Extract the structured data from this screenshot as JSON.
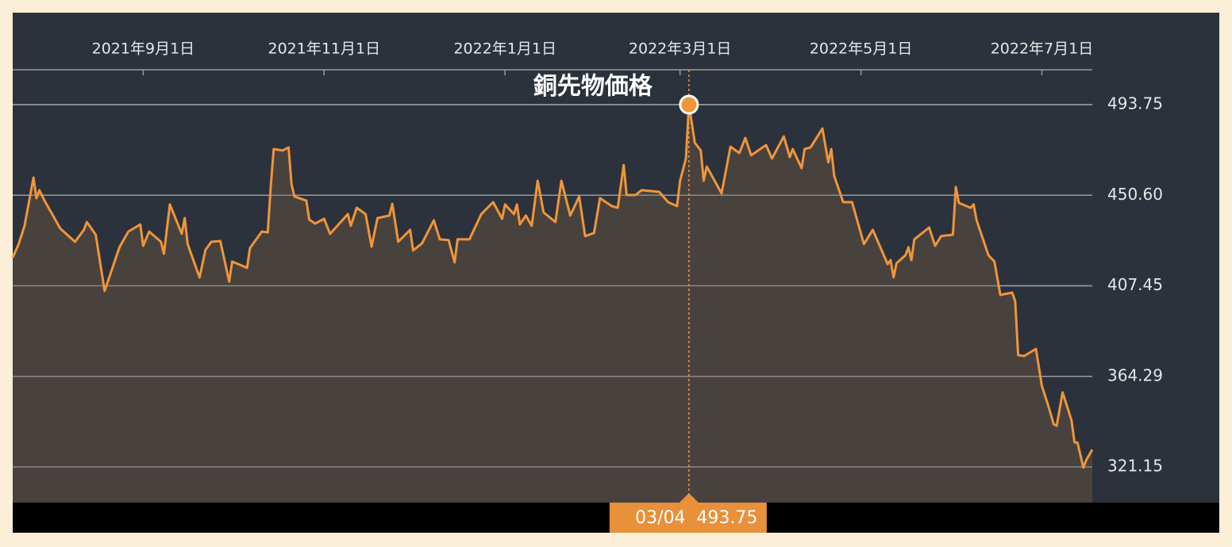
{
  "chart_data": {
    "type": "line",
    "x": [
      "2021-07-19",
      "2021-07-21",
      "2021-07-23",
      "2021-07-26",
      "2021-07-27",
      "2021-07-28",
      "2021-07-30",
      "2021-08-01",
      "2021-08-04",
      "2021-08-09",
      "2021-08-12",
      "2021-08-13",
      "2021-08-16",
      "2021-08-19",
      "2021-08-24",
      "2021-08-27",
      "2021-08-31",
      "2021-09-01",
      "2021-09-03",
      "2021-09-07",
      "2021-09-08",
      "2021-09-10",
      "2021-09-14",
      "2021-09-15",
      "2021-09-16",
      "2021-09-20",
      "2021-09-22",
      "2021-09-24",
      "2021-09-27",
      "2021-09-30",
      "2021-10-01",
      "2021-10-06",
      "2021-10-07",
      "2021-10-11",
      "2021-10-13",
      "2021-10-14",
      "2021-10-15",
      "2021-10-18",
      "2021-10-20",
      "2021-10-21",
      "2021-10-22",
      "2021-10-26",
      "2021-10-27",
      "2021-10-29",
      "2021-11-01",
      "2021-11-03",
      "2021-11-09",
      "2021-11-10",
      "2021-11-12",
      "2021-11-15",
      "2021-11-17",
      "2021-11-19",
      "2021-11-23",
      "2021-11-24",
      "2021-11-26",
      "2021-11-30",
      "2021-12-01",
      "2021-12-04",
      "2021-12-08",
      "2021-12-10",
      "2021-12-13",
      "2021-12-15",
      "2021-12-16",
      "2021-12-20",
      "2021-12-24",
      "2021-12-28",
      "2021-12-31",
      "2022-01-01",
      "2022-01-04",
      "2022-01-05",
      "2022-01-06",
      "2022-01-08",
      "2022-01-10",
      "2022-01-12",
      "2022-01-14",
      "2022-01-18",
      "2022-01-20",
      "2022-01-23",
      "2022-01-26",
      "2022-01-28",
      "2022-01-31",
      "2022-02-02",
      "2022-02-06",
      "2022-02-08",
      "2022-02-10",
      "2022-02-11",
      "2022-02-14",
      "2022-02-16",
      "2022-02-22",
      "2022-02-25",
      "2022-02-28",
      "2022-03-01",
      "2022-03-03",
      "2022-03-04",
      "2022-03-06",
      "2022-03-08",
      "2022-03-09",
      "2022-03-10",
      "2022-03-15",
      "2022-03-18",
      "2022-03-21",
      "2022-03-23",
      "2022-03-25",
      "2022-03-30",
      "2022-04-01",
      "2022-04-05",
      "2022-04-07",
      "2022-04-08",
      "2022-04-11",
      "2022-04-12",
      "2022-04-14",
      "2022-04-18",
      "2022-04-20",
      "2022-04-21",
      "2022-04-22",
      "2022-04-25",
      "2022-04-28",
      "2022-05-02",
      "2022-05-05",
      "2022-05-10",
      "2022-05-11",
      "2022-05-12",
      "2022-05-13",
      "2022-05-16",
      "2022-05-17",
      "2022-05-18",
      "2022-05-19",
      "2022-05-24",
      "2022-05-26",
      "2022-05-28",
      "2022-06-01",
      "2022-06-02",
      "2022-06-03",
      "2022-06-07",
      "2022-06-08",
      "2022-06-09",
      "2022-06-13",
      "2022-06-15",
      "2022-06-17",
      "2022-06-21",
      "2022-06-22",
      "2022-06-23",
      "2022-06-25",
      "2022-06-29",
      "2022-07-01",
      "2022-07-03",
      "2022-07-05",
      "2022-07-06",
      "2022-07-08",
      "2022-07-11",
      "2022-07-12",
      "2022-07-13",
      "2022-07-15",
      "2022-07-16",
      "2022-07-18"
    ],
    "series": [
      {
        "name": "銅先物価格",
        "color": "#f0953a",
        "values": [
          420.9,
          427.3,
          436.0,
          459.0,
          449.2,
          453.0,
          447.3,
          442.4,
          434.8,
          428.4,
          434.1,
          437.8,
          431.8,
          405.0,
          425.8,
          433.3,
          436.7,
          426.5,
          433.3,
          428.4,
          422.7,
          446.2,
          432.2,
          439.7,
          427.3,
          411.4,
          424.6,
          428.4,
          428.8,
          409.5,
          419.0,
          416.0,
          425.4,
          433.3,
          432.9,
          454.9,
          472.6,
          471.9,
          473.4,
          456.0,
          450.0,
          448.0,
          439.0,
          437.1,
          439.4,
          432.2,
          441.6,
          436.0,
          444.6,
          441.6,
          426.1,
          439.7,
          440.9,
          446.5,
          428.4,
          434.1,
          424.3,
          427.7,
          438.6,
          429.6,
          429.2,
          418.6,
          429.6,
          429.6,
          441.6,
          447.3,
          439.4,
          446.2,
          441.6,
          446.2,
          436.7,
          440.9,
          436.0,
          457.5,
          442.4,
          437.8,
          457.5,
          440.9,
          450.0,
          431.1,
          432.6,
          449.2,
          445.4,
          444.6,
          465.0,
          450.7,
          450.7,
          453.0,
          452.2,
          447.3,
          445.4,
          457.5,
          468.1,
          493.75,
          475.6,
          471.9,
          457.5,
          464.3,
          451.5,
          473.7,
          470.7,
          477.9,
          469.6,
          474.5,
          468.1,
          478.6,
          468.8,
          472.6,
          463.5,
          472.6,
          473.4,
          482.4,
          466.2,
          472.6,
          459.8,
          447.3,
          447.3,
          427.3,
          434.1,
          417.8,
          419.7,
          411.4,
          418.2,
          422.0,
          425.8,
          419.7,
          429.6,
          435.2,
          426.5,
          431.1,
          431.8,
          454.5,
          446.9,
          444.6,
          446.2,
          438.6,
          422.0,
          419.0,
          403.1,
          404.2,
          400.1,
          374.4,
          374.0,
          377.4,
          359.7,
          351.0,
          341.5,
          340.8,
          356.7,
          343.4,
          332.8,
          332.8,
          320.8,
          324.5,
          329.4
        ]
      }
    ],
    "xlim": [
      "2021-07-19",
      "2022-07-18"
    ],
    "xticks": [
      {
        "value": "2021-09-01",
        "label": "2021年9月1日"
      },
      {
        "value": "2021-11-01",
        "label": "2021年11月1日"
      },
      {
        "value": "2022-01-01",
        "label": "2022年1月1日"
      },
      {
        "value": "2022-03-01",
        "label": "2022年3月1日"
      },
      {
        "value": "2022-05-01",
        "label": "2022年5月1日"
      },
      {
        "value": "2022-07-01",
        "label": "2022年7月1日"
      }
    ],
    "ylim": [
      304.15,
      510.37
    ],
    "yticks": [
      321.15,
      364.29,
      407.45,
      {
        "value": 450.6,
        "label": "450.60"
      },
      493.75
    ],
    "grid": true,
    "tooltip": {
      "x": "2022-03-04",
      "label": "03/04",
      "value": 493.75
    }
  }
}
